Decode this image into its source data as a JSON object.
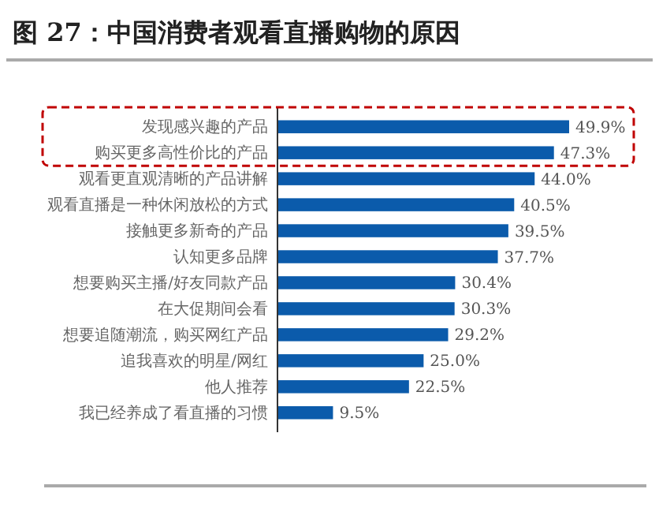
{
  "chart_data": {
    "type": "bar",
    "orientation": "horizontal",
    "title": "图 27：中国消费者观看直播购物的原因",
    "categories": [
      "发现感兴趣的产品",
      "购买更多高性价比的产品",
      "观看更直观清晰的产品讲解",
      "观看直播是一种休闲放松的方式",
      "接触更多新奇的产品",
      "认知更多品牌",
      "想要购买主播/好友同款产品",
      "在大促期间会看",
      "想要追随潮流，购买网红产品",
      "追我喜欢的明星/网红",
      "他人推荐",
      "我已经养成了看直播的习惯"
    ],
    "values": [
      49.9,
      47.3,
      44.0,
      40.5,
      39.5,
      37.7,
      30.4,
      30.3,
      29.2,
      25.0,
      22.5,
      9.5
    ],
    "value_labels": [
      "49.9%",
      "47.3%",
      "44.0%",
      "40.5%",
      "39.5%",
      "37.7%",
      "30.4%",
      "30.3%",
      "29.2%",
      "25.0%",
      "22.5%",
      "9.5%"
    ],
    "color": "#0b5bab"
  }
}
